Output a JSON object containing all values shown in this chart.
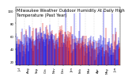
{
  "title": "Milwaukee Weather Outdoor Humidity At Daily High Temperature (Past Year)",
  "ylim": [
    15,
    105
  ],
  "xlim": [
    0,
    365
  ],
  "background_color": "#ffffff",
  "grid_color": "#bbbbbb",
  "blue_color": "#0000dd",
  "red_color": "#dd0000",
  "title_fontsize": 3.8,
  "tick_fontsize": 2.8,
  "num_points": 365,
  "month_days": [
    0,
    31,
    59,
    90,
    120,
    151,
    181,
    212,
    243,
    273,
    304,
    334,
    365
  ],
  "month_labels": [
    "Jul",
    "Aug",
    "Sep",
    "Oct",
    "Nov",
    "Dec",
    "Jan",
    "Feb",
    "Mar",
    "Apr",
    "May",
    "Jun",
    "Jul"
  ],
  "yticks": [
    20,
    40,
    60,
    80,
    100
  ],
  "spike_positions": [
    175,
    205,
    225,
    308,
    338
  ],
  "spike_values": [
    100,
    95,
    97,
    100,
    95
  ]
}
